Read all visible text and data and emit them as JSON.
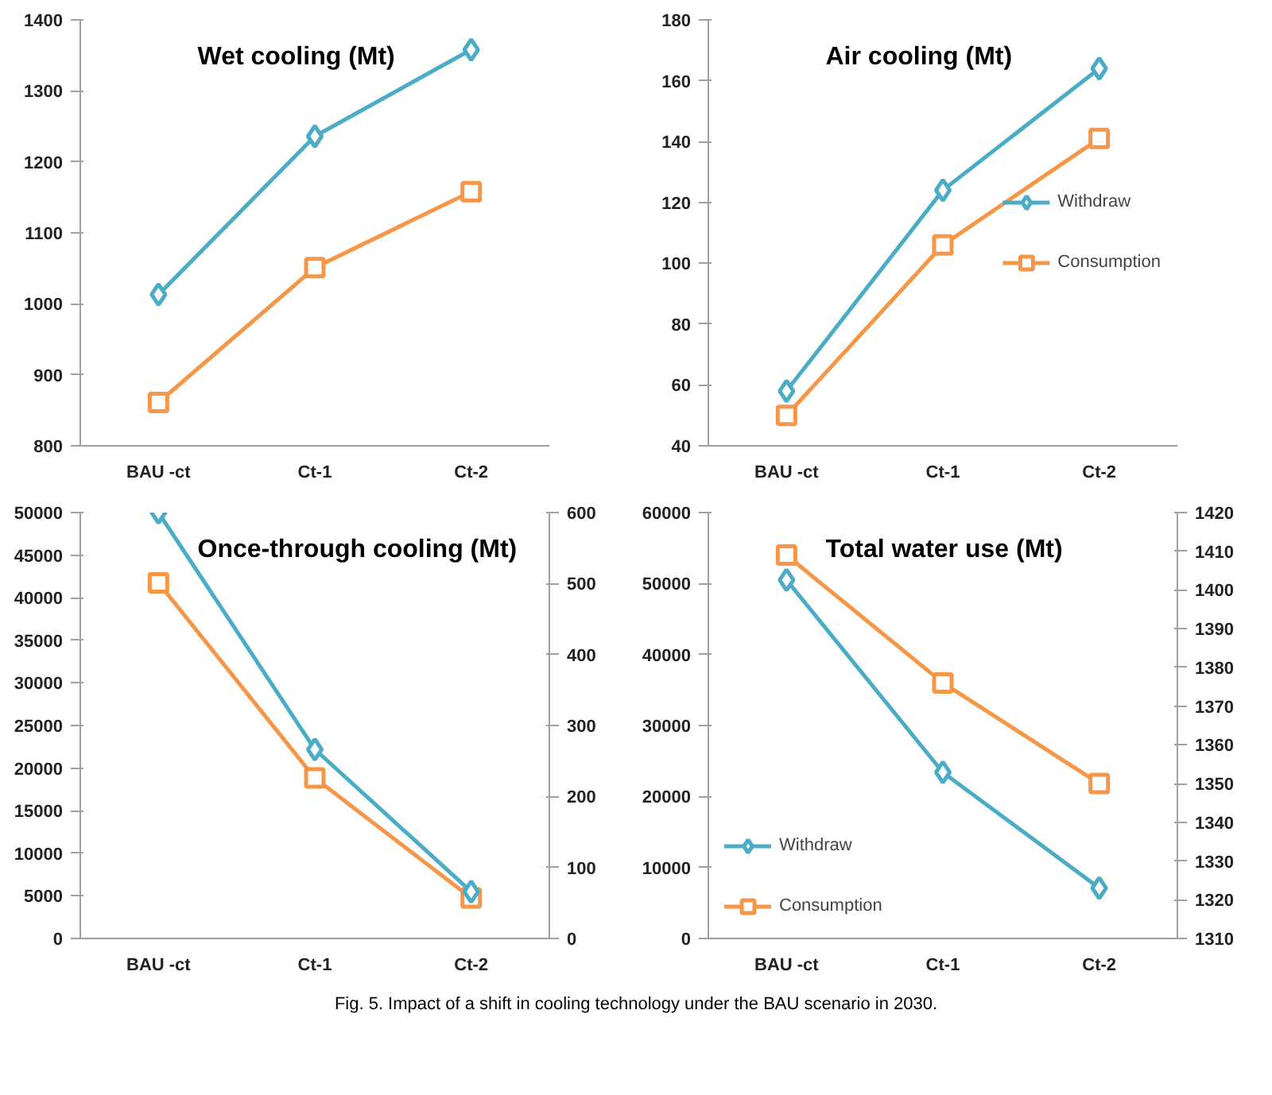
{
  "chart_data": [
    {
      "type": "line",
      "title": "Wet cooling (Mt)",
      "categories": [
        "BAU -ct",
        "Ct-1",
        "Ct-2"
      ],
      "ylim": [
        800,
        1400
      ],
      "yticks": [
        800,
        900,
        1000,
        1100,
        1200,
        1300,
        1400
      ],
      "grid": false,
      "legend": false,
      "series": [
        {
          "color": "#4bacc6",
          "marker": "diamond",
          "values": [
            1013,
            1236,
            1358
          ]
        },
        {
          "color": "#f79646",
          "marker": "square",
          "values": [
            861,
            1051,
            1158
          ]
        }
      ]
    },
    {
      "type": "line",
      "title": "Air cooling (Mt)",
      "categories": [
        "BAU -ct",
        "Ct-1",
        "Ct-2"
      ],
      "ylim": [
        40,
        180
      ],
      "yticks": [
        40,
        60,
        80,
        100,
        120,
        140,
        160,
        180
      ],
      "grid": false,
      "legend": "right",
      "series": [
        {
          "name": "Withdraw",
          "color": "#4bacc6",
          "marker": "diamond",
          "values": [
            58,
            124,
            164
          ]
        },
        {
          "name": "Consumption",
          "color": "#f79646",
          "marker": "square",
          "values": [
            50,
            106,
            141
          ]
        }
      ]
    },
    {
      "type": "line",
      "title": "Once-through cooling (Mt)",
      "categories": [
        "BAU -ct",
        "Ct-1",
        "Ct-2"
      ],
      "ylim": [
        0,
        50000
      ],
      "yticks": [
        0,
        5000,
        10000,
        15000,
        20000,
        25000,
        30000,
        35000,
        40000,
        45000,
        50000
      ],
      "y2lim": [
        0,
        600
      ],
      "y2ticks": [
        0,
        100,
        200,
        300,
        400,
        500,
        600
      ],
      "grid": false,
      "legend": false,
      "series": [
        {
          "color": "#4bacc6",
          "marker": "diamond",
          "values": [
            50000,
            22200,
            5500
          ]
        },
        {
          "color": "#f79646",
          "marker": "square",
          "axis": "y2",
          "values": [
            501,
            226,
            57
          ]
        }
      ]
    },
    {
      "type": "line",
      "title": "Total water use (Mt)",
      "categories": [
        "BAU -ct",
        "Ct-1",
        "Ct-2"
      ],
      "ylim": [
        0,
        60000
      ],
      "yticks": [
        0,
        10000,
        20000,
        30000,
        40000,
        50000,
        60000
      ],
      "y2lim": [
        1310,
        1420
      ],
      "y2ticks": [
        1310,
        1320,
        1330,
        1340,
        1350,
        1360,
        1370,
        1380,
        1390,
        1400,
        1410,
        1420
      ],
      "grid": false,
      "legend": "bottom left",
      "annotations": [
        "Fig. 5. Impact of a shift in cooling technology under the BAU scenario in 2030."
      ],
      "series": [
        {
          "name": "Withdraw",
          "color": "#4bacc6",
          "marker": "diamond",
          "values": [
            50500,
            23400,
            7100
          ]
        },
        {
          "name": "Consumption",
          "color": "#f79646",
          "marker": "square",
          "axis": "y2",
          "values": [
            1409,
            1376,
            1350
          ]
        }
      ]
    }
  ]
}
